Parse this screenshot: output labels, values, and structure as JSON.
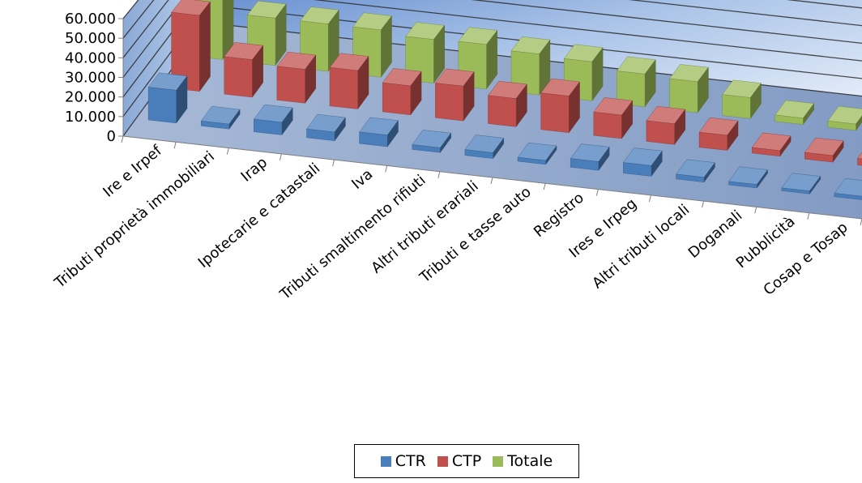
{
  "chart_data": {
    "type": "bar",
    "subtype": "3d-clustered-column",
    "title": "",
    "xlabel": "",
    "ylabel": "",
    "ylim": [
      0,
      60000
    ],
    "yticks": [
      0,
      10000,
      20000,
      30000,
      40000,
      50000,
      60000
    ],
    "ytick_labels": [
      "0",
      "10.000",
      "20.000",
      "30.000",
      "40.000",
      "50.000",
      "60.000"
    ],
    "grid": true,
    "legend_position": "bottom",
    "categories": [
      "Ire e Irpef",
      "Tributi proprietà immobiliari",
      "Irap",
      "Ipotecarie e catastali",
      "Iva",
      "Tributi smaltimento rifiuti",
      "Altri tributi erariali",
      "Tributi e tasse auto",
      "Registro",
      "Ires e Irpeg",
      "Altri tributi locali",
      "Doganali",
      "Pubblicità",
      "Cosap e Tosap"
    ],
    "series": [
      {
        "name": "CTR",
        "color": "#4a7ebb",
        "values": [
          17000,
          2500,
          6500,
          4500,
          6000,
          2500,
          3000,
          2000,
          4500,
          5500,
          2500,
          1800,
          1500,
          1800
        ]
      },
      {
        "name": "CTP",
        "color": "#c0504d",
        "values": [
          40500,
          20000,
          18000,
          20500,
          15500,
          18500,
          15000,
          19500,
          12500,
          11000,
          8000,
          3000,
          3500,
          3500
        ]
      },
      {
        "name": "Totale",
        "color": "#9bbb59",
        "values": [
          58000,
          26000,
          26000,
          26000,
          24000,
          24500,
          22500,
          21500,
          18000,
          17000,
          11500,
          3500,
          3500,
          3500
        ]
      }
    ]
  }
}
